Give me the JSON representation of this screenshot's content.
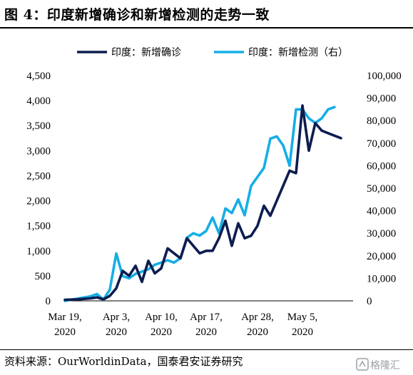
{
  "title": "图 4：印度新增确诊和新增检测的走势一致",
  "source": "资料来源：OurWorldinData，国泰君安证券研究",
  "watermark_text": "格隆汇",
  "colors": {
    "cases": "#0d1d4f",
    "tests": "#16aee6",
    "text": "#000000"
  },
  "chart_data": {
    "type": "line",
    "title": "",
    "xlabel": "",
    "x_tick_labels": [
      [
        "Mar 19,",
        "2020"
      ],
      [
        "Apr 3,",
        "2020"
      ],
      [
        "Apr 10,",
        "2020"
      ],
      [
        "Apr 17,",
        "2020"
      ],
      [
        "Apr 28,",
        "2020"
      ],
      [
        "May 5,",
        "2020"
      ]
    ],
    "x_tick_day_index": [
      0,
      8,
      15,
      22,
      30,
      37
    ],
    "ylabel_left": "",
    "ylabel_right": "",
    "y_left": {
      "min": 0,
      "max": 4500,
      "step": 500
    },
    "y_right": {
      "min": 0,
      "max": 100000,
      "step": 10000
    },
    "y_left_tick_labels": [
      "0",
      "500",
      "1,000",
      "1,500",
      "2,000",
      "2,500",
      "3,000",
      "3,500",
      "4,000",
      "4,500"
    ],
    "y_right_tick_labels": [
      "0",
      "10,000",
      "20,000",
      "30,000",
      "40,000",
      "50,000",
      "60,000",
      "70,000",
      "80,000",
      "90,000",
      "100,000"
    ],
    "legend_position": "top",
    "series": [
      {
        "name": "印度：新增确诊",
        "axis": "left",
        "values": [
          20,
          25,
          30,
          40,
          50,
          70,
          30,
          100,
          250,
          600,
          500,
          700,
          380,
          800,
          550,
          650,
          1050,
          950,
          850,
          1250,
          1100,
          950,
          1000,
          1000,
          1250,
          1600,
          1100,
          1550,
          1250,
          1300,
          1500,
          1900,
          1700,
          2000,
          2300,
          2600,
          2550,
          3900,
          3000,
          3550,
          3400,
          3350,
          3300,
          3250
        ]
      },
      {
        "name": "印度：新增检测（右）",
        "axis": "right",
        "values": [
          0,
          500,
          1000,
          1500,
          2000,
          3000,
          500,
          5000,
          21000,
          11000,
          10000,
          12000,
          13000,
          14000,
          16000,
          17000,
          18000,
          17000,
          19000,
          28000,
          30000,
          29000,
          31000,
          37000,
          30000,
          41000,
          39000,
          45000,
          38000,
          51000,
          55000,
          59000,
          72000,
          73000,
          69000,
          60000,
          85000,
          85000,
          81000,
          79000,
          81000,
          85000,
          86000
        ]
      }
    ]
  }
}
